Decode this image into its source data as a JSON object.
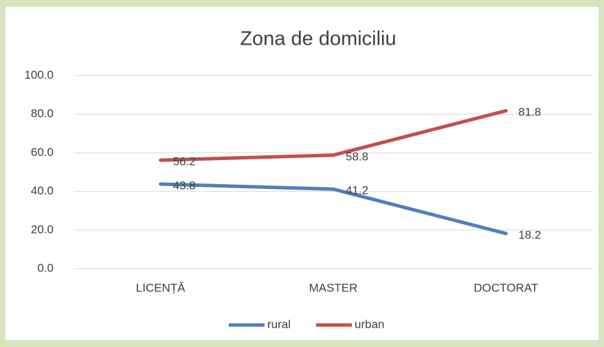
{
  "chart_data": {
    "type": "line",
    "title": "Zona de domiciliu",
    "categories": [
      "LICENȚĂ",
      "MASTER",
      "DOCTORAT"
    ],
    "series": [
      {
        "name": "rural",
        "color": "#4f7fbd",
        "values": [
          43.8,
          41.2,
          18.2
        ]
      },
      {
        "name": "urban",
        "color": "#c0504d",
        "values": [
          56.2,
          58.8,
          81.8
        ]
      }
    ],
    "ylim": [
      0,
      100
    ],
    "yticks": [
      {
        "value": 0,
        "label": "0.0"
      },
      {
        "value": 20,
        "label": "20.0"
      },
      {
        "value": 40,
        "label": "40.0"
      },
      {
        "value": 60,
        "label": "60.0"
      },
      {
        "value": 80,
        "label": "80.0"
      },
      {
        "value": 100,
        "label": "100.0"
      }
    ],
    "grid": true,
    "legend": "bottom"
  }
}
